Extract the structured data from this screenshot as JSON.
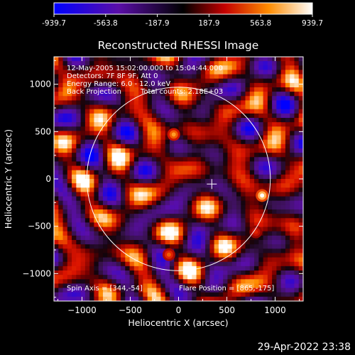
{
  "chart_data": {
    "type": "heatmap",
    "title": "Reconstructed RHESSI Image",
    "xlabel": "Heliocentric X (arcsec)",
    "ylabel": "Heliocentric Y (arcsec)",
    "xlim": [
      -1290,
      1290
    ],
    "ylim": [
      -1290,
      1290
    ],
    "xticks": [
      -1000,
      -500,
      0,
      500,
      1000
    ],
    "yticks": [
      -1000,
      -500,
      0,
      500,
      1000
    ],
    "colorbar": {
      "range": [
        -939.7,
        939.7
      ],
      "ticks": [
        "-939.7",
        "-563.8",
        "-187.9",
        "187.9",
        "563.8",
        "939.7"
      ]
    },
    "annotations": [
      "12-May-2005 15:02:00.000 to 15:04:44.000",
      "Detectors: 7F 8F 9F, Att 0",
      "Energy Range: 6.0 - 12.0 keV",
      "Back Projection",
      "Total counts: 2.18E+03",
      "Spin Axis = [344,-54]",
      "Flare Position = [865,-175]"
    ],
    "solar_limb_radius": 950,
    "spin_axis": [
      344,
      -54
    ],
    "flare_position": [
      865,
      -175
    ],
    "bright_sources": [
      {
        "x": 865,
        "y": -175,
        "value": 939.7
      },
      {
        "x": -50,
        "y": 470,
        "value": 700
      },
      {
        "x": -100,
        "y": -800,
        "value": 560
      },
      {
        "x": 800,
        "y": -560,
        "value": 450
      }
    ]
  },
  "footer": {
    "timestamp": "29-Apr-2022 23:38"
  }
}
